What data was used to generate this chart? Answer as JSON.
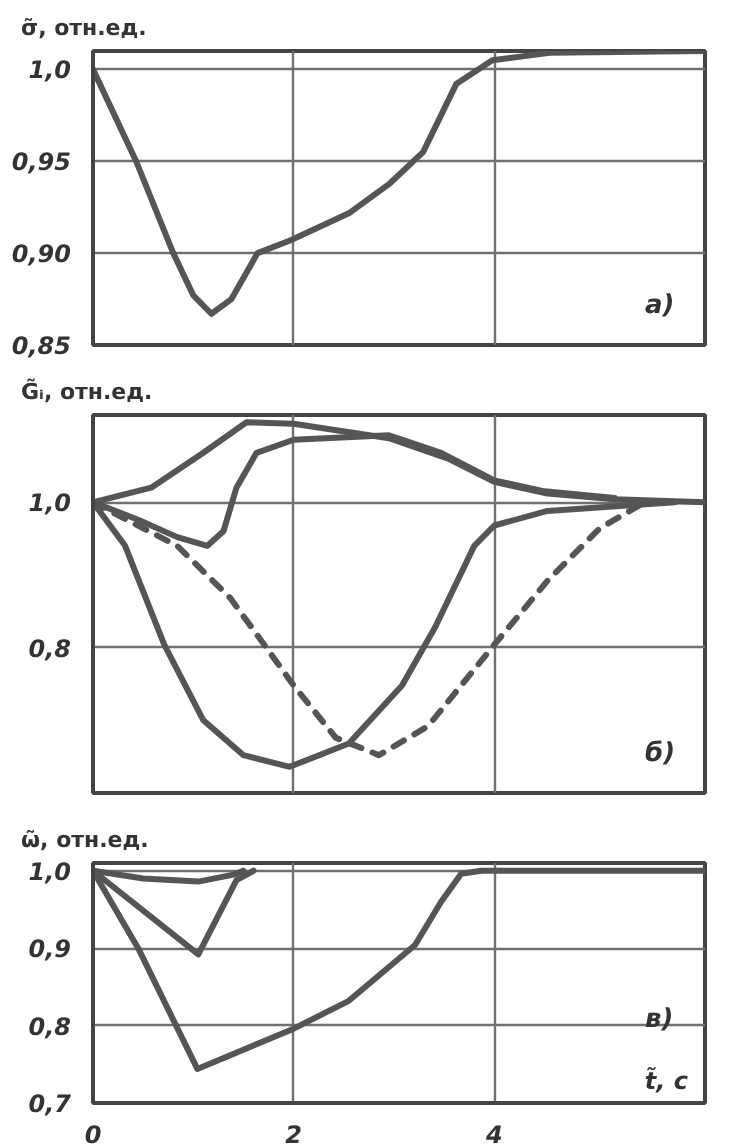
{
  "chart_data": [
    {
      "type": "line",
      "ylabel": "σ̃, отн.ед.",
      "annotations": [
        "а)"
      ],
      "xlim": [
        0,
        6.1
      ],
      "ylim": [
        0.85,
        1.01
      ],
      "xticks": [
        0,
        2,
        4
      ],
      "yticks": [
        {
          "value": 0.85,
          "label": "0,85"
        },
        {
          "value": 0.9,
          "label": "0,90"
        },
        {
          "value": 0.95,
          "label": "0,95"
        },
        {
          "value": 1.0,
          "label": "1,0"
        }
      ],
      "tick_labels": "y",
      "grid": true,
      "line_style": "solid",
      "series": [
        {
          "color": "#555555",
          "x": [
            0,
            0.43,
            0.8,
            1.0,
            1.18,
            1.38,
            1.64,
            1.97,
            2.56,
            2.96,
            3.29,
            3.62,
            3.98,
            4.55,
            6.1
          ],
          "values": [
            1.0,
            0.95,
            0.9,
            0.877,
            0.867,
            0.875,
            0.9,
            0.907,
            0.922,
            0.938,
            0.955,
            0.992,
            1.005,
            1.009,
            1.01
          ]
        }
      ]
    },
    {
      "type": "line",
      "ylabel": "G̃ᵢ, отн.ед.",
      "annotations": [
        "б)"
      ],
      "xlim": [
        0,
        6.1
      ],
      "ylim": [
        0.6,
        1.12
      ],
      "xticks": [
        0,
        2,
        4
      ],
      "yticks": [
        {
          "value": 0.8,
          "label": "0,8"
        },
        {
          "value": 1.0,
          "label": "1,0"
        }
      ],
      "tick_labels": "y",
      "grid": true,
      "line_style": "solid",
      "series": [
        {
          "color": "#555555",
          "x": [
            0,
            0.58,
            1.1,
            1.53,
            2.0,
            2.95,
            3.54,
            4.0,
            4.53,
            5.2,
            6.1
          ],
          "values": [
            1.0,
            1.02,
            1.068,
            1.11,
            1.108,
            1.088,
            1.06,
            1.028,
            1.012,
            1.004,
            1.0
          ]
        },
        {
          "color": "#555555",
          "x": [
            0,
            0.45,
            0.84,
            1.14,
            1.3,
            1.43,
            1.63,
            2.0,
            2.95,
            3.47,
            4.0,
            4.5,
            5.2
          ],
          "values": [
            1.0,
            0.976,
            0.952,
            0.94,
            0.96,
            1.02,
            1.068,
            1.086,
            1.092,
            1.068,
            1.03,
            1.015,
            1.006
          ]
        },
        {
          "color": "#555555",
          "x": [
            0,
            0.32,
            0.71,
            1.1,
            1.5,
            1.96,
            2.55,
            3.08,
            3.41,
            3.8,
            4.0,
            4.53,
            5.8
          ],
          "values": [
            1.0,
            0.94,
            0.804,
            0.7,
            0.652,
            0.636,
            0.668,
            0.748,
            0.828,
            0.94,
            0.968,
            0.988,
            1.0
          ]
        },
        {
          "color": "#555555",
          "line_style": "dashed",
          "x": [
            0,
            0.84,
            1.37,
            2.0,
            2.42,
            2.85,
            3.34,
            4.0,
            4.53,
            5.05,
            5.5
          ],
          "values": [
            1.0,
            0.94,
            0.868,
            0.748,
            0.676,
            0.652,
            0.692,
            0.804,
            0.892,
            0.964,
            1.0
          ]
        }
      ]
    },
    {
      "type": "line",
      "ylabel": "ω̃, отн.ед.",
      "xlabel": "t̃, с",
      "annotations": [
        "в)"
      ],
      "xlim": [
        0,
        6.1
      ],
      "ylim": [
        0.7,
        1.01
      ],
      "xticks": [
        0,
        2,
        4
      ],
      "yticks": [
        {
          "value": 0.7,
          "label": "0,7"
        },
        {
          "value": 0.8,
          "label": "0,8"
        },
        {
          "value": 0.9,
          "label": "0,9"
        },
        {
          "value": 1.0,
          "label": "1,0"
        }
      ],
      "grid": true,
      "line_style": "solid",
      "series": [
        {
          "color": "#555555",
          "x": [
            0,
            0.5,
            1.05,
            1.4,
            1.5
          ],
          "values": [
            1.0,
            0.99,
            0.986,
            0.995,
            1.0
          ]
        },
        {
          "color": "#555555",
          "x": [
            0,
            1.05,
            1.43,
            1.6
          ],
          "values": [
            1.0,
            0.892,
            0.988,
            1.0
          ]
        },
        {
          "color": "#555555",
          "x": [
            0,
            0.45,
            1.04,
            2.0,
            2.55,
            3.21,
            3.47,
            3.67,
            3.87,
            6.1
          ],
          "values": [
            1.0,
            0.9,
            0.744,
            0.796,
            0.832,
            0.904,
            0.96,
            0.996,
            1.0,
            1.0
          ]
        }
      ]
    }
  ]
}
